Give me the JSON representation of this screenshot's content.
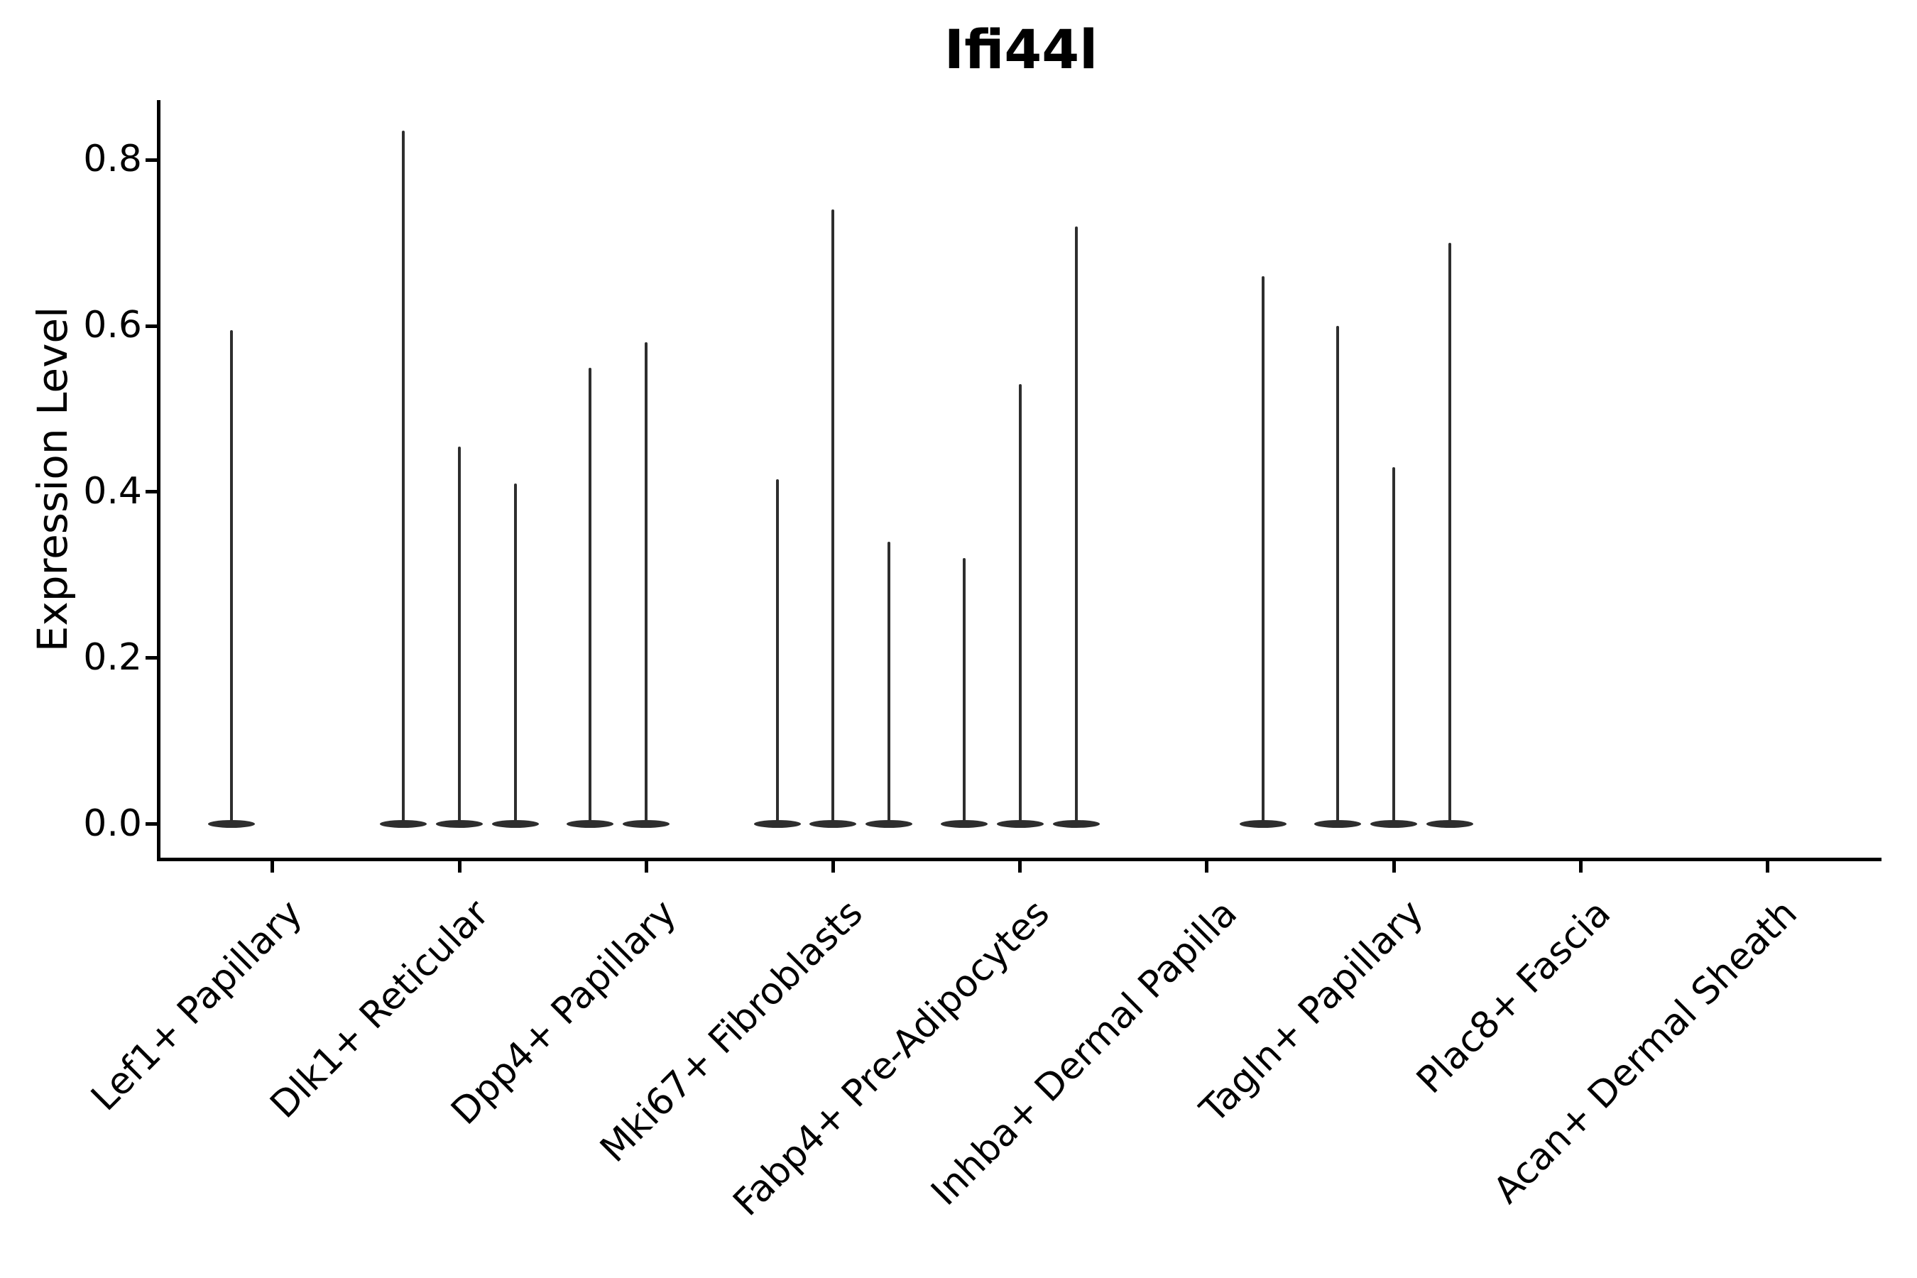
{
  "figure": {
    "title": "Ifi44l",
    "ylabel": "Expression Level"
  },
  "colors": {
    "violin": "#2e2e2e",
    "axis": "#000000",
    "text": "#000000",
    "background": "#ffffff"
  },
  "chart_data": {
    "type": "violin",
    "title": "Ifi44l",
    "xlabel": "",
    "ylabel": "Expression Level",
    "categories": [
      "Lef1+ Papillary",
      "Dlk1+ Reticular",
      "Dpp4+ Papillary",
      "Mki67+ Fibroblasts",
      "Fabp4+ Pre-Adipocytes",
      "Inhba+ Dermal Papilla",
      "Tagln+ Papillary",
      "Plac8+ Fascia",
      "Acan+ Dermal Sheath"
    ],
    "yticks": [
      0.0,
      0.2,
      0.4,
      0.6,
      0.8
    ],
    "ylim": [
      -0.0405,
      0.872
    ],
    "xlim": [
      -0.6,
      8.61
    ],
    "grid": false,
    "legend": false,
    "violin_width_frac": 0.92,
    "note": "Needle violins: nearly all cells at 0 (flat base), thin spikes mark maximum expression of rare expressing cells; up to 3 sub-violin spikes per category at offsets (fraction of category slot).",
    "series": [
      {
        "category": "Lef1+ Papillary",
        "spikes": [
          {
            "offset": -0.22,
            "max": 0.595
          }
        ]
      },
      {
        "category": "Dlk1+ Reticular",
        "spikes": [
          {
            "offset": -0.3,
            "max": 0.835
          },
          {
            "offset": 0.0,
            "max": 0.455
          },
          {
            "offset": 0.3,
            "max": 0.41
          }
        ]
      },
      {
        "category": "Dpp4+ Papillary",
        "spikes": [
          {
            "offset": -0.3,
            "max": 0.55
          },
          {
            "offset": 0.0,
            "max": 0.58
          }
        ]
      },
      {
        "category": "Mki67+ Fibroblasts",
        "spikes": [
          {
            "offset": -0.3,
            "max": 0.415
          },
          {
            "offset": 0.0,
            "max": 0.74
          },
          {
            "offset": 0.3,
            "max": 0.34
          }
        ]
      },
      {
        "category": "Fabp4+ Pre-Adipocytes",
        "spikes": [
          {
            "offset": -0.3,
            "max": 0.32
          },
          {
            "offset": 0.0,
            "max": 0.53
          },
          {
            "offset": 0.3,
            "max": 0.72
          }
        ]
      },
      {
        "category": "Inhba+ Dermal Papilla",
        "spikes": [
          {
            "offset": 0.3,
            "max": 0.66
          }
        ]
      },
      {
        "category": "Tagln+ Papillary",
        "spikes": [
          {
            "offset": -0.3,
            "max": 0.6
          },
          {
            "offset": 0.0,
            "max": 0.43
          },
          {
            "offset": 0.3,
            "max": 0.7
          }
        ]
      },
      {
        "category": "Plac8+ Fascia",
        "spikes": []
      },
      {
        "category": "Acan+ Dermal Sheath",
        "spikes": []
      }
    ]
  }
}
